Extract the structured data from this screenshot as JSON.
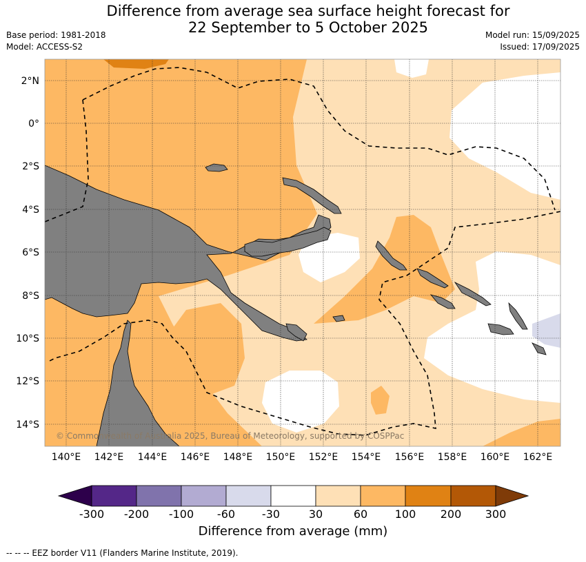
{
  "title_line1": "Difference from average sea surface height forecast for",
  "title_line2": "22 September to 5 October 2025",
  "meta_left": [
    "Base period: 1981-2018",
    "Model: ACCESS-S2"
  ],
  "meta_right": [
    "Model run: 15/09/2025",
    "Issued: 17/09/2025"
  ],
  "lat_labels": [
    "2°N",
    "0°",
    "2°S",
    "4°S",
    "6°S",
    "8°S",
    "10°S",
    "12°S",
    "14°S"
  ],
  "lon_labels": [
    "140°E",
    "142°E",
    "144°E",
    "146°E",
    "148°E",
    "150°E",
    "152°E",
    "154°E",
    "156°E",
    "158°E",
    "160°E",
    "162°E"
  ],
  "copyright": "© Commonwealth of Australia 2025, Bureau of Meteorology, supported by COSPPac",
  "colorbar": {
    "label": "Difference from average (mm)",
    "ticks": [
      "-300",
      "-200",
      "-100",
      "-60",
      "-30",
      "30",
      "60",
      "100",
      "200",
      "300"
    ],
    "colors": [
      "#542788",
      "#8073ac",
      "#b2abd2",
      "#d8daeb",
      "#ffffff",
      "#fee0b6",
      "#fdb863",
      "#e08214",
      "#b35806"
    ],
    "under_color": "#2d004b",
    "over_color": "#7f3b08"
  },
  "footer": "--  --  -- EEZ border V11 (Flanders Marine Institute, 2019)."
}
